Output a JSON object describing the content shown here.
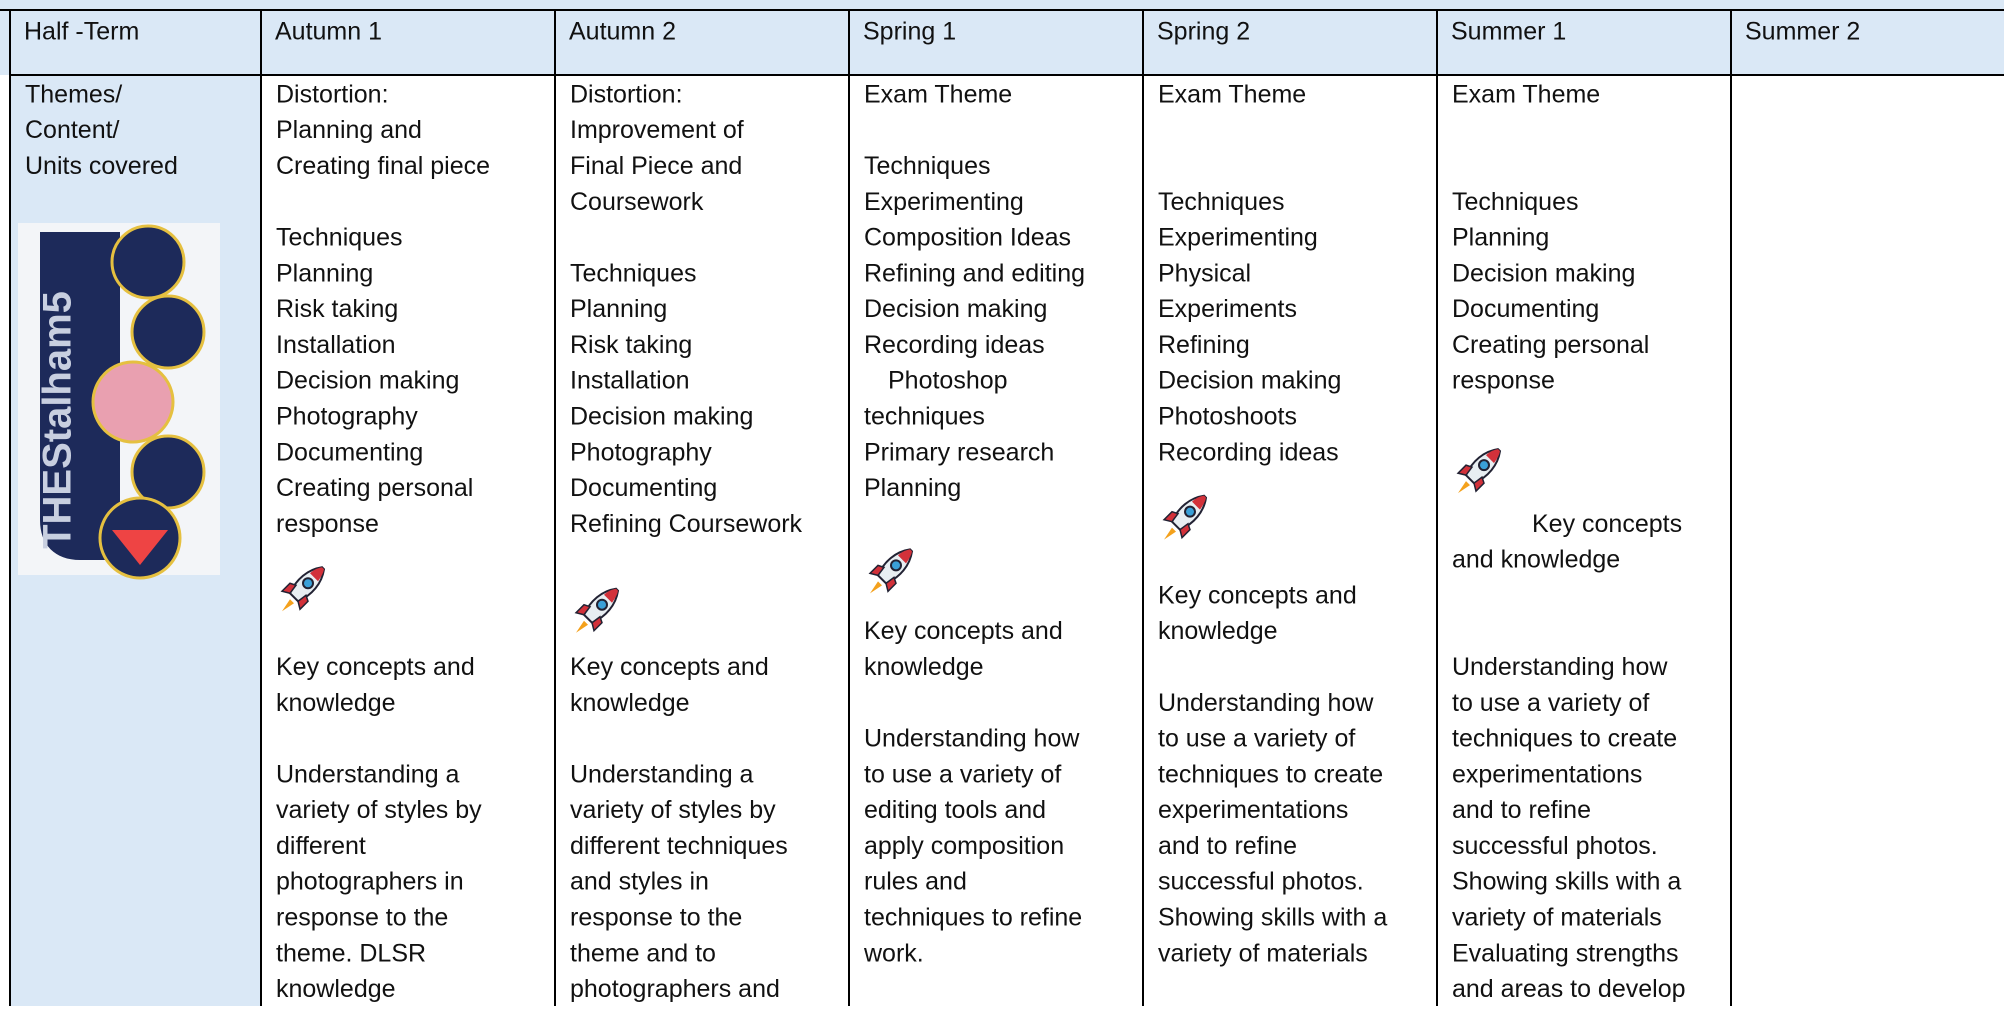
{
  "table": {
    "header": [
      "Half -Term",
      "Autumn 1",
      "Autumn 2",
      "Spring 1",
      "Spring 2",
      "Summer 1",
      "Summer 2"
    ],
    "row_label": [
      "Themes/",
      "Content/",
      "Units covered"
    ],
    "cells": [
      [
        [
          "Distortion:",
          "Planning and",
          "Creating final piece"
        ],
        [
          "Techniques",
          "Planning",
          "Risk taking",
          "Installation",
          "Decision making",
          "Photography",
          "Documenting",
          "Creating personal",
          "response"
        ],
        [
          "Key concepts and",
          "knowledge"
        ],
        [
          "Understanding a",
          "variety of styles by",
          "different",
          "photographers in",
          "response to the",
          "theme. DLSR",
          "knowledge"
        ]
      ],
      [
        [
          "Distortion:",
          "Improvement of",
          "Final Piece and",
          "Coursework"
        ],
        [
          "Techniques",
          "Planning",
          "Risk taking",
          "Installation",
          "Decision making",
          "Photography",
          "Documenting",
          "Refining Coursework"
        ],
        [
          "Key concepts and",
          "knowledge"
        ],
        [
          "Understanding a",
          "variety of styles by",
          "different techniques",
          "and styles in",
          "response to the",
          "theme and to",
          "photographers and"
        ]
      ],
      [
        [
          "Exam Theme"
        ],
        [
          "Techniques",
          "Experimenting",
          "Composition Ideas",
          "Refining and editing",
          "Decision making",
          "Recording ideas",
          "Photoshop",
          "techniques",
          "Primary research",
          "Planning"
        ],
        [
          "Key concepts and",
          "knowledge"
        ],
        [
          "Understanding how",
          "to use a variety of",
          "editing tools and",
          "apply composition",
          "rules and",
          "techniques to refine",
          "work."
        ]
      ],
      [
        [
          "Exam Theme"
        ],
        [
          "Techniques",
          "Experimenting",
          "Physical",
          "Experiments",
          "Refining",
          "Decision making",
          "Photoshoots",
          "Recording ideas"
        ],
        [
          "Key concepts and",
          "knowledge"
        ],
        [
          "Understanding how",
          "to use a variety of",
          "techniques to create",
          "experimentations",
          "and to refine",
          "successful photos.",
          "Showing skills with a",
          "variety of materials"
        ]
      ],
      [
        [
          "Exam Theme"
        ],
        [
          "Techniques",
          "Planning",
          "Decision making",
          "Documenting",
          "Creating personal",
          "response"
        ],
        [
          "Key concepts",
          "and knowledge"
        ],
        [
          "Understanding how",
          "to use a variety of",
          "techniques to create",
          "experimentations",
          "and to refine",
          "successful photos.",
          "Showing skills with a",
          "variety of materials",
          "Evaluating strengths",
          "and areas to develop"
        ]
      ]
    ]
  }
}
